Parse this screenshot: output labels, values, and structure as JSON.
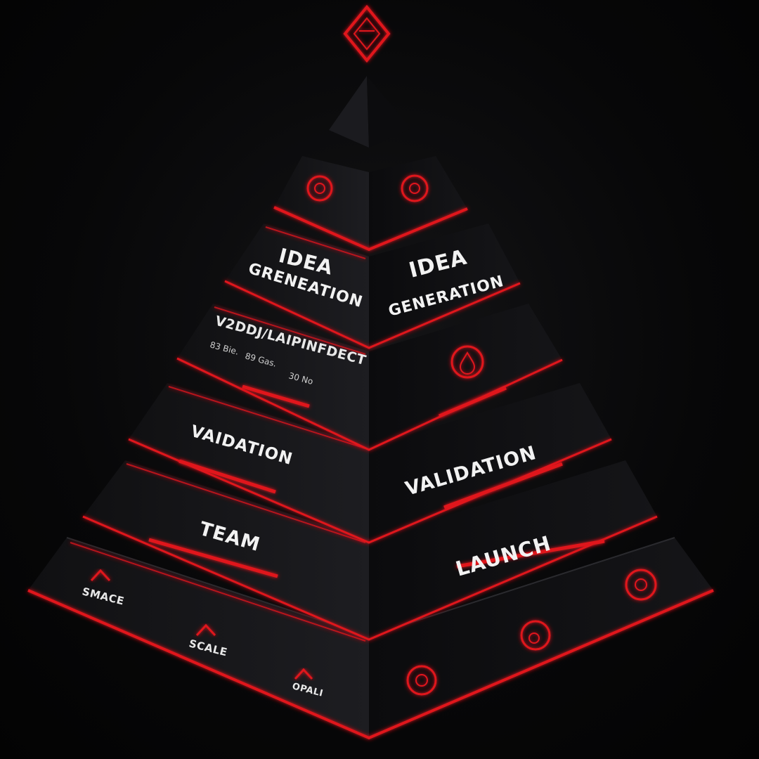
{
  "colors": {
    "accent": "#e0141c",
    "face_left": "#17171a",
    "face_right": "#0e0e10",
    "background": "#050505"
  },
  "tiers": {
    "tier2": {
      "left": {
        "line1": "IDEA",
        "line2": "GRENEATION"
      },
      "right": {
        "line1": "IDEA",
        "line2": "GENERATION"
      }
    },
    "tier3": {
      "left": {
        "title": "V2DDJ/LAIPINFDECT",
        "note1": "83 Bie.",
        "note2": "89 Gas.",
        "note3": "30 No"
      }
    },
    "tier4": {
      "left": "VAIDATION",
      "right": "VALIDATION"
    },
    "tier5": {
      "left": "TEAM",
      "right": "LAUNCH"
    },
    "tier6": {
      "left": {
        "item1": "SMACE",
        "item2": "SCALE",
        "item3": "OPALI"
      }
    }
  },
  "icons": [
    "diamond-emblem-icon",
    "target-icon",
    "face-badge-icon",
    "drop-icon",
    "mountain-icon"
  ]
}
